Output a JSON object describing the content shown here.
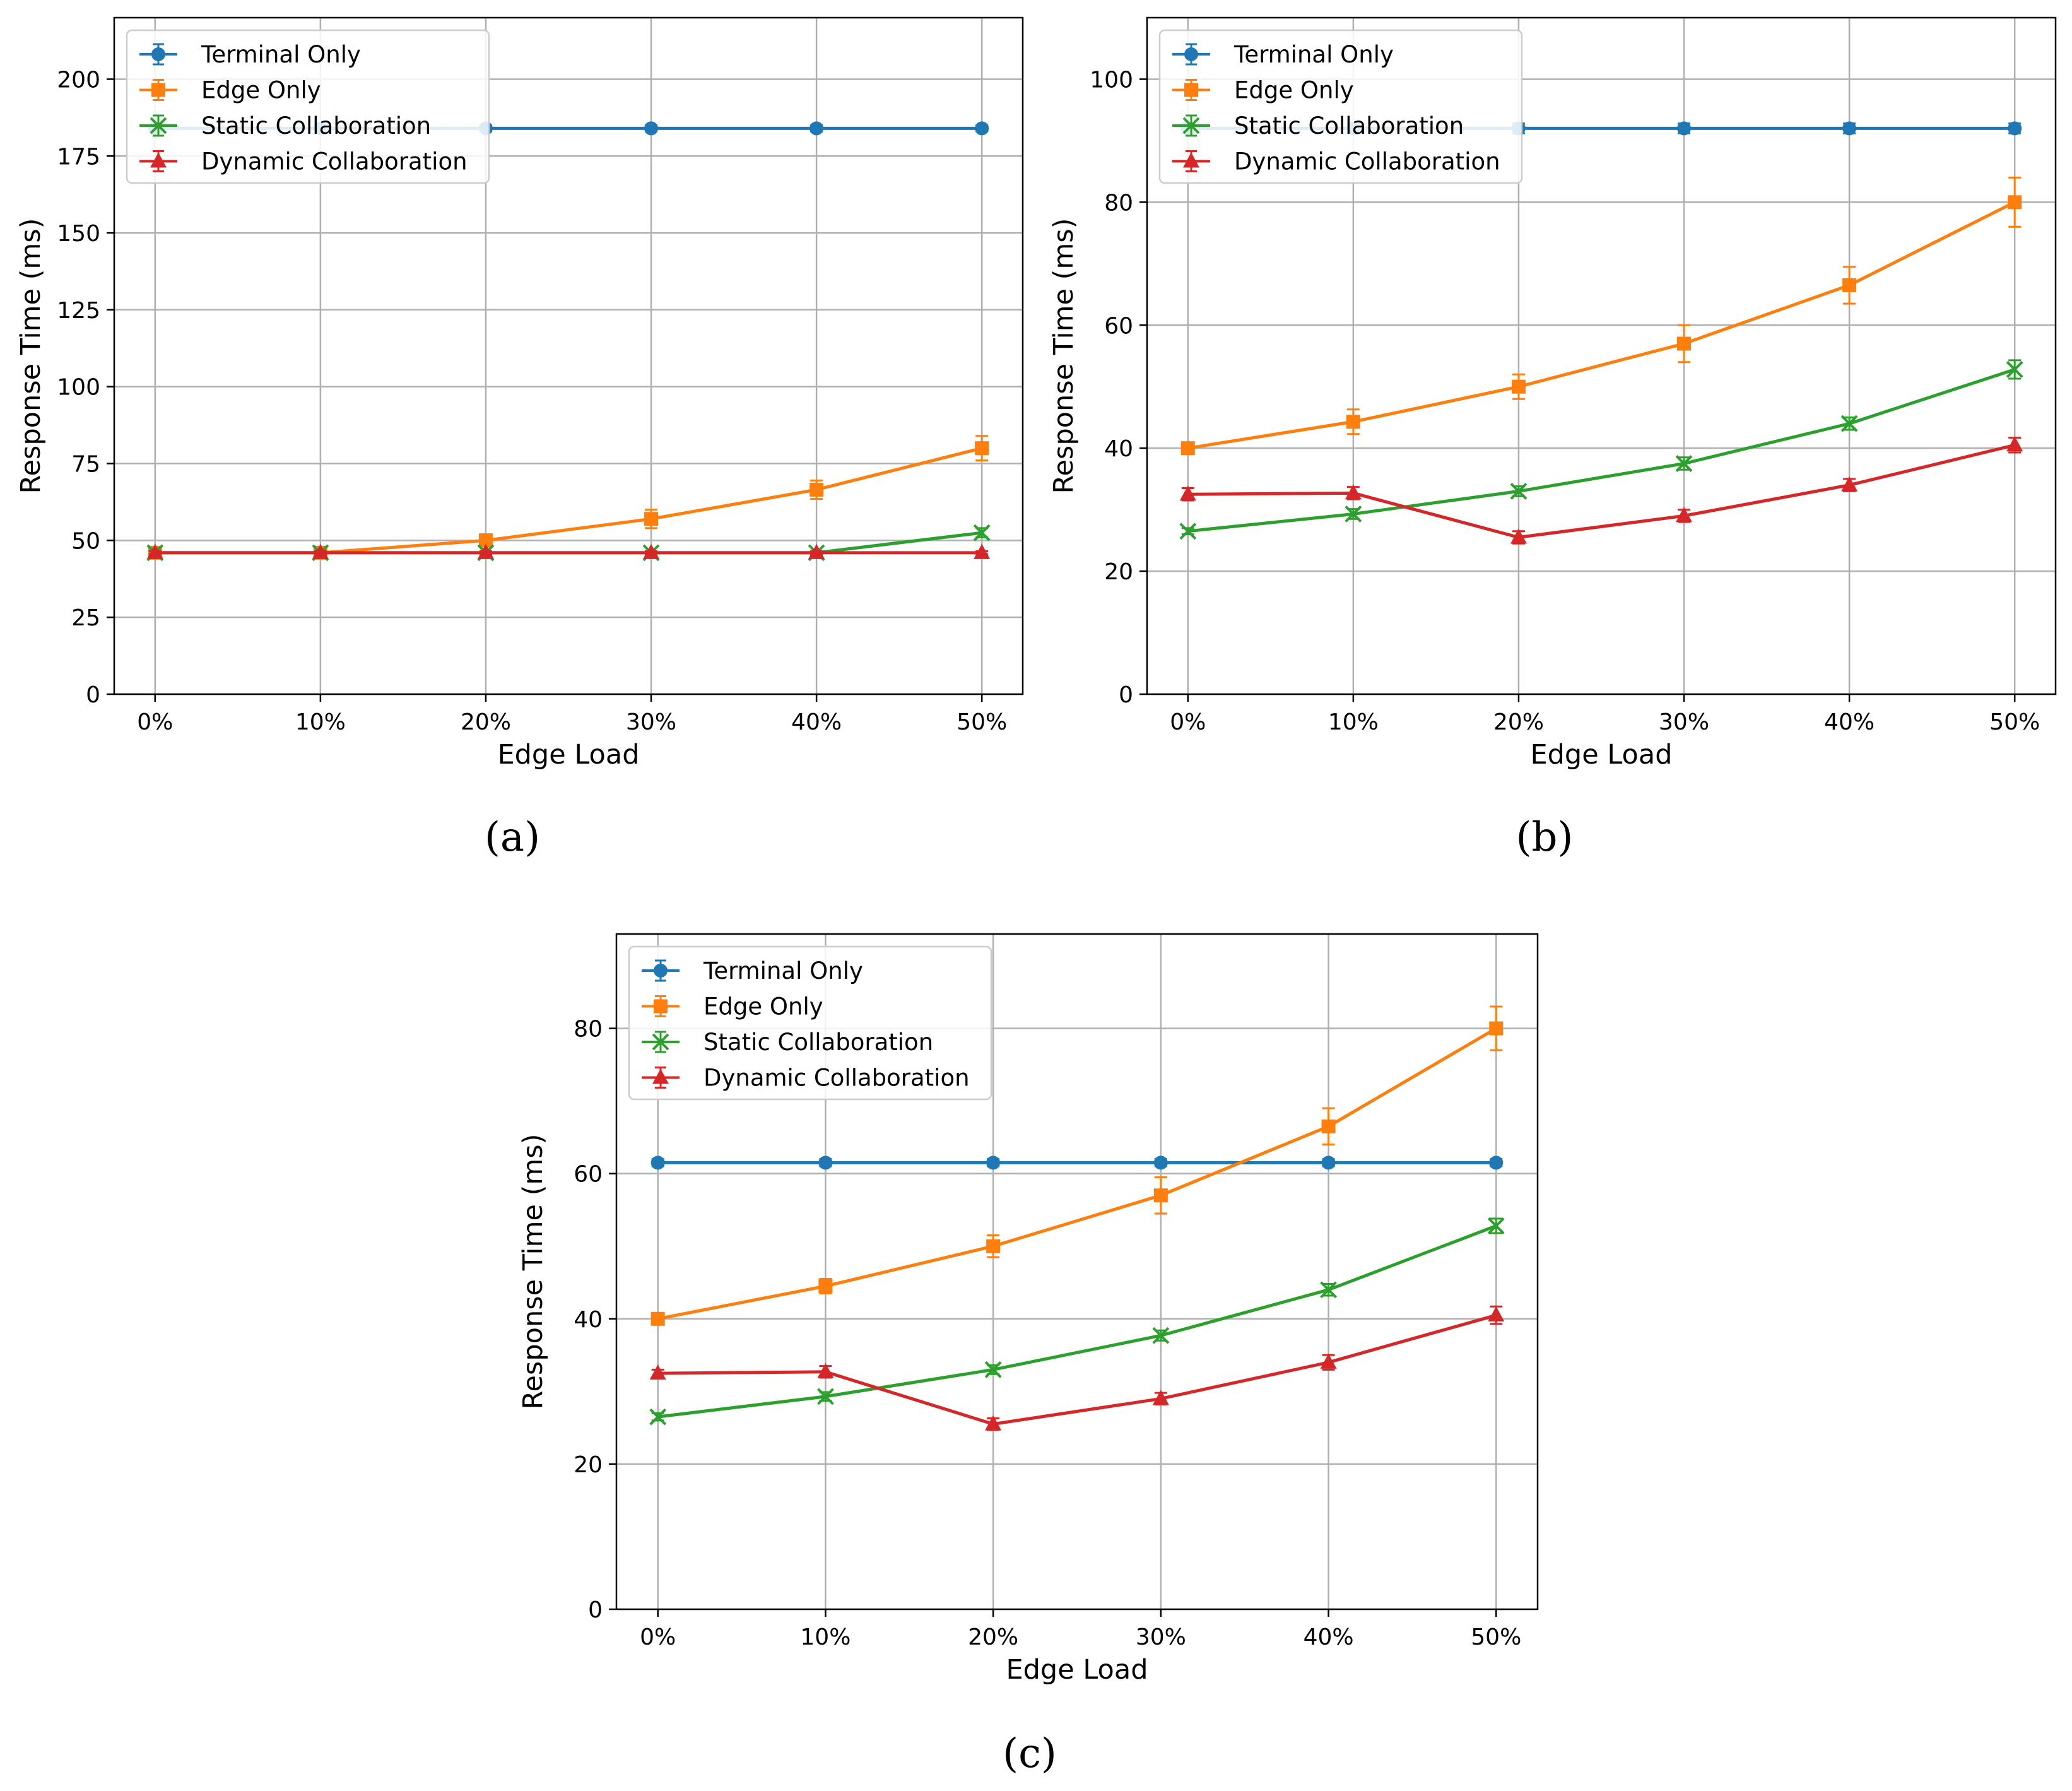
{
  "chart_data": [
    {
      "type": "line",
      "caption": "(a)",
      "xlabel": "Edge Load",
      "ylabel": "Response Time (ms)",
      "categories": [
        "0%",
        "10%",
        "20%",
        "30%",
        "40%",
        "50%"
      ],
      "ylim": [
        0,
        220
      ],
      "yticks": [
        0,
        25,
        50,
        75,
        100,
        125,
        150,
        175,
        200
      ],
      "grid": true,
      "legend_position": "top-left",
      "series": [
        {
          "name": "Terminal Only",
          "color": "#1f77b4",
          "marker": "circle",
          "values": [
            184,
            184,
            184,
            184,
            184,
            184
          ],
          "errors": [
            1,
            1,
            1,
            1,
            1,
            1
          ]
        },
        {
          "name": "Edge Only",
          "color": "#ff7f0e",
          "marker": "square",
          "values": [
            46,
            46,
            50,
            57,
            66.5,
            80
          ],
          "errors": [
            0.5,
            0.5,
            2,
            3,
            3,
            4
          ]
        },
        {
          "name": "Static Collaboration",
          "color": "#2ca02c",
          "marker": "x",
          "values": [
            46,
            46,
            46,
            46,
            46,
            52.5
          ],
          "errors": [
            0.5,
            0.5,
            0.5,
            0.5,
            0.5,
            1.5
          ]
        },
        {
          "name": "Dynamic Collaboration",
          "color": "#d62728",
          "marker": "triangle",
          "values": [
            46,
            46,
            46,
            46,
            46,
            46
          ],
          "errors": [
            0.5,
            0.5,
            0.5,
            0.5,
            0.5,
            0.5
          ]
        }
      ]
    },
    {
      "type": "line",
      "caption": "(b)",
      "xlabel": "Edge Load",
      "ylabel": "Response Time (ms)",
      "categories": [
        "0%",
        "10%",
        "20%",
        "30%",
        "40%",
        "50%"
      ],
      "ylim": [
        0,
        110
      ],
      "yticks": [
        0,
        20,
        40,
        60,
        80,
        100
      ],
      "grid": true,
      "legend_position": "top-left",
      "series": [
        {
          "name": "Terminal Only",
          "color": "#1f77b4",
          "marker": "circle",
          "values": [
            92,
            92,
            92,
            92,
            92,
            92
          ],
          "errors": [
            0.8,
            0.8,
            0.8,
            0.8,
            0.8,
            0.8
          ]
        },
        {
          "name": "Edge Only",
          "color": "#ff7f0e",
          "marker": "square",
          "values": [
            40,
            44.3,
            50,
            57,
            66.5,
            80
          ],
          "errors": [
            0.5,
            2,
            2,
            3,
            3,
            4
          ]
        },
        {
          "name": "Static Collaboration",
          "color": "#2ca02c",
          "marker": "x",
          "values": [
            26.5,
            29.3,
            33,
            37.5,
            44,
            52.8
          ],
          "errors": [
            0.5,
            0.8,
            0.8,
            1,
            1,
            1.5
          ]
        },
        {
          "name": "Dynamic Collaboration",
          "color": "#d62728",
          "marker": "triangle",
          "values": [
            32.5,
            32.7,
            25.5,
            29,
            34,
            40.5
          ],
          "errors": [
            1,
            1,
            1,
            1,
            1,
            1.2
          ]
        }
      ]
    },
    {
      "type": "line",
      "caption": "(c)",
      "xlabel": "Edge Load",
      "ylabel": "Response Time (ms)",
      "categories": [
        "0%",
        "10%",
        "20%",
        "30%",
        "40%",
        "50%"
      ],
      "ylim": [
        0,
        93
      ],
      "yticks": [
        0,
        20,
        40,
        60,
        80
      ],
      "grid": true,
      "legend_position": "top-left",
      "series": [
        {
          "name": "Terminal Only",
          "color": "#1f77b4",
          "marker": "circle",
          "values": [
            61.5,
            61.5,
            61.5,
            61.5,
            61.5,
            61.5
          ],
          "errors": [
            0.5,
            0.5,
            0.5,
            0.5,
            0.5,
            0.5
          ]
        },
        {
          "name": "Edge Only",
          "color": "#ff7f0e",
          "marker": "square",
          "values": [
            40,
            44.5,
            50,
            57,
            66.5,
            80
          ],
          "errors": [
            0.5,
            1,
            1.5,
            2.5,
            2.5,
            3
          ]
        },
        {
          "name": "Static Collaboration",
          "color": "#2ca02c",
          "marker": "x",
          "values": [
            26.5,
            29.3,
            33,
            37.7,
            44,
            52.8
          ],
          "errors": [
            0.5,
            0.6,
            0.6,
            0.7,
            0.8,
            1
          ]
        },
        {
          "name": "Dynamic Collaboration",
          "color": "#d62728",
          "marker": "triangle",
          "values": [
            32.5,
            32.7,
            25.5,
            29,
            34,
            40.5
          ],
          "errors": [
            0.5,
            0.8,
            0.8,
            0.8,
            1,
            1.2
          ]
        }
      ]
    }
  ]
}
